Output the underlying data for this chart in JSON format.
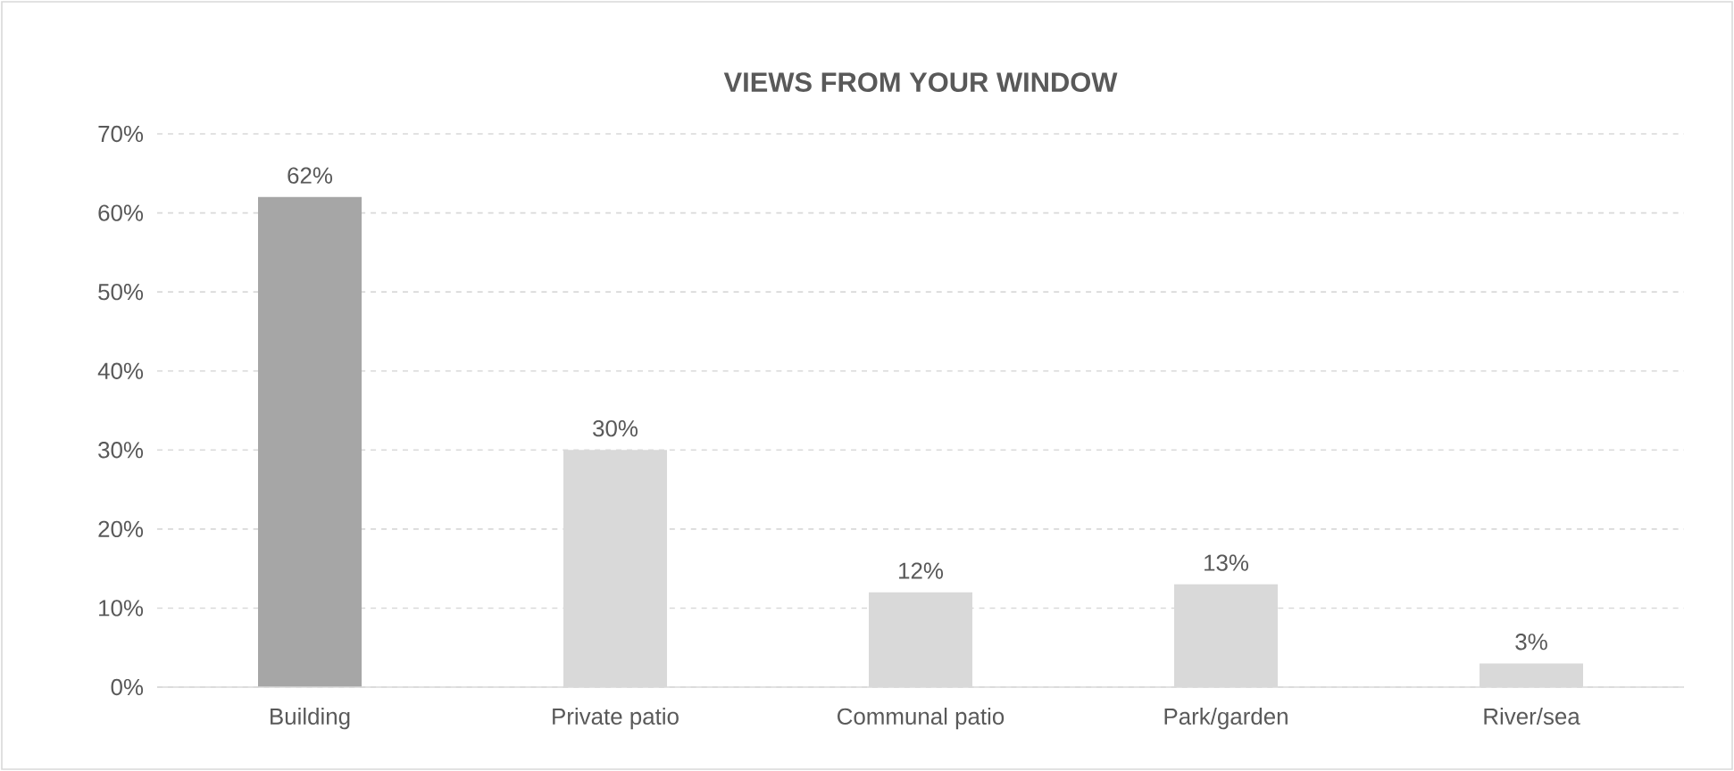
{
  "chart_data": {
    "type": "bar",
    "title": "VIEWS FROM YOUR WINDOW",
    "categories": [
      "Building",
      "Private patio",
      "Communal patio",
      "Park/garden",
      "River/sea"
    ],
    "values": [
      62,
      30,
      12,
      13,
      3
    ],
    "colors": [
      "#a6a6a6",
      "#d9d9d9",
      "#d9d9d9",
      "#d9d9d9",
      "#d9d9d9"
    ],
    "value_labels": [
      "62%",
      "30%",
      "12%",
      "13%",
      "3%"
    ],
    "ylim": [
      0,
      70
    ],
    "yticks": [
      {
        "value": 0,
        "label": "0%"
      },
      {
        "value": 10,
        "label": "10%"
      },
      {
        "value": 20,
        "label": "20%"
      },
      {
        "value": 30,
        "label": "30%"
      },
      {
        "value": 40,
        "label": "40%"
      },
      {
        "value": 50,
        "label": "50%"
      },
      {
        "value": 60,
        "label": "60%"
      },
      {
        "value": 70,
        "label": "70%"
      }
    ],
    "grid": "y"
  }
}
